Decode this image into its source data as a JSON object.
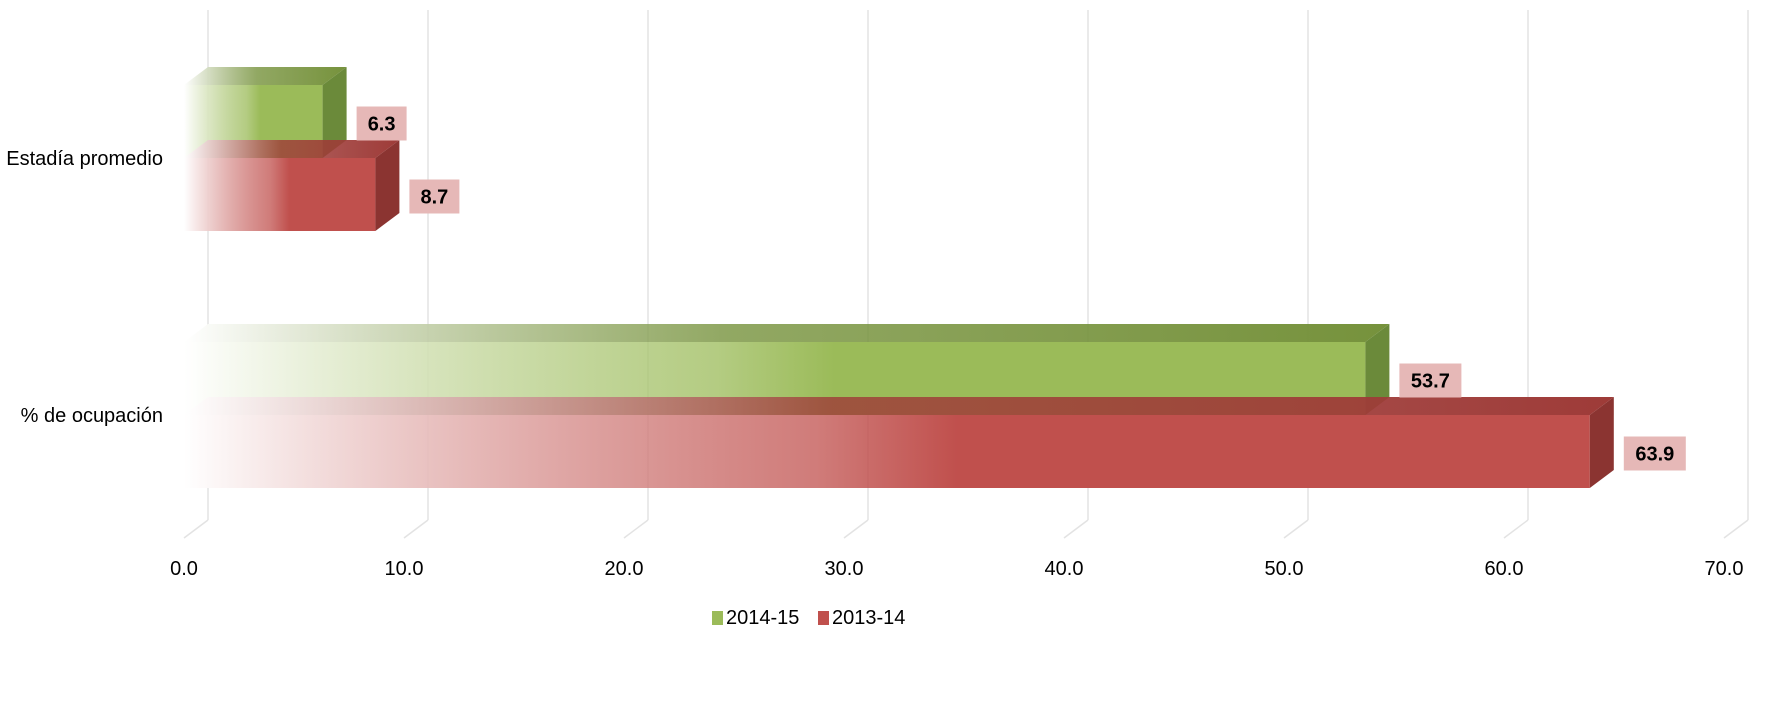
{
  "chart_data": {
    "type": "bar",
    "orientation": "horizontal",
    "style": "3d",
    "categories": [
      "Estadía promedio",
      "% de ocupación"
    ],
    "series": [
      {
        "name": "2014-15",
        "values": [
          6.3,
          53.7
        ],
        "labels": [
          "6.3",
          "53.7"
        ],
        "color": "#9BBB59",
        "top_color": "#76923C",
        "side_color": "#6B8A3A"
      },
      {
        "name": "2013-14",
        "values": [
          8.7,
          63.9
        ],
        "labels": [
          "8.7",
          "63.9"
        ],
        "color": "#C0504D",
        "top_color": "#9E3B38",
        "side_color": "#8B3431"
      }
    ],
    "x_ticks": [
      "0.0",
      "10.0",
      "20.0",
      "30.0",
      "40.0",
      "50.0",
      "60.0",
      "70.0"
    ],
    "xlim": [
      0,
      70
    ],
    "grid": true,
    "legend_position": "bottom",
    "data_label_bg": "#E6B8B7"
  }
}
